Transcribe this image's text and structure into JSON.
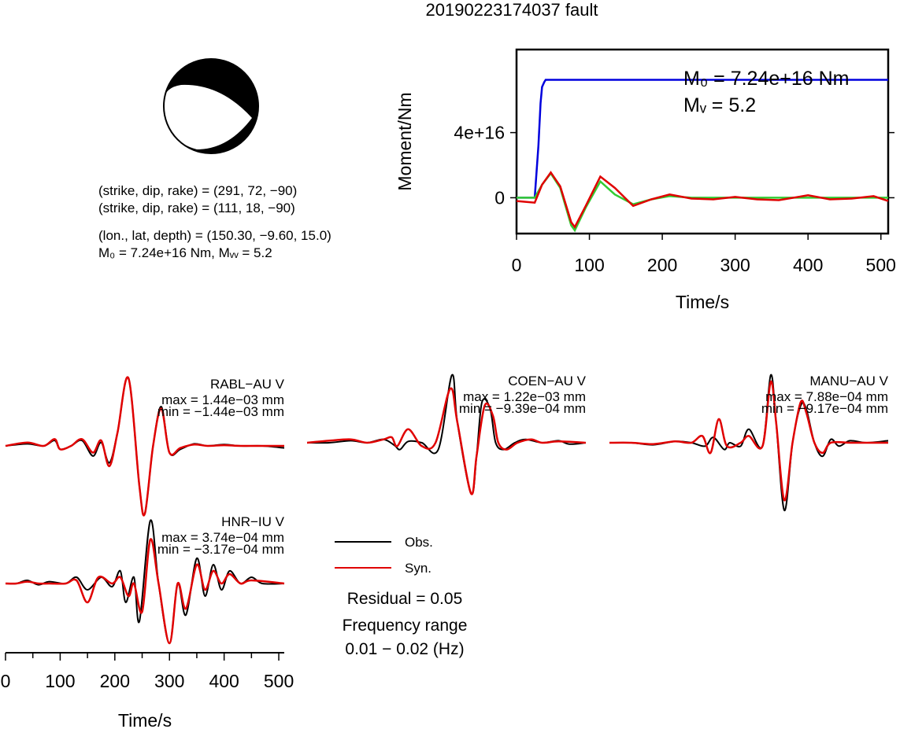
{
  "title": "20190223174037 fault",
  "mechanism": {
    "line1": "(strike, dip, rake) = (291, 72, −90)",
    "line2": "(strike, dip, rake) = (111, 18, −90)",
    "line3": "(lon., lat, depth) = (150.30, −9.60, 15.0)",
    "line4": "M₀ = 7.24e+16 Nm, Mᵥᵥ = 5.2"
  },
  "legend": {
    "obs": "Obs.",
    "syn": "Syn.",
    "residual": "Residual = 0.05",
    "freq_label": "Frequency range",
    "freq_value": "0.01 − 0.02 (Hz)"
  },
  "colors": {
    "obs": "#000000",
    "syn": "#e00000",
    "moment": "#0000dd",
    "stf": "#33cc33"
  },
  "chart_data": [
    {
      "type": "line",
      "name": "moment",
      "xlabel": "Time/s",
      "ylabel": "Moment/Nm",
      "xlim": [
        0,
        510
      ],
      "ylim": [
        -2.2e+16,
        9.1e+16
      ],
      "xticks": [
        "0",
        "100",
        "200",
        "300",
        "400",
        "500"
      ],
      "yticks": [
        "0",
        "4e+16"
      ],
      "annotation_m0": "M₀ = 7.24e+16 Nm",
      "annotation_mw": "Mᵥ = 5.2",
      "series": [
        {
          "color": "#0000dd",
          "x": [
            0,
            25,
            30,
            33,
            35,
            38,
            40,
            45,
            60,
            100,
            200,
            300,
            400,
            510
          ],
          "y": [
            0,
            0,
            3.2e+16,
            5.8e+16,
            6.8e+16,
            7.1e+16,
            7.24e+16,
            7.24e+16,
            7.24e+16,
            7.24e+16,
            7.24e+16,
            7.24e+16,
            7.24e+16,
            7.24e+16
          ]
        },
        {
          "color": "#33cc33",
          "x": [
            0,
            25,
            35,
            47,
            60,
            75,
            80,
            95,
            115,
            135,
            160,
            185,
            210,
            240,
            270,
            300,
            400,
            510
          ],
          "y": [
            0,
            0,
            8000000000000000.0,
            1.5e+16,
            6000000000000000.0,
            -1.7e+16,
            -2e+16,
            -6000000000000000.0,
            1e+16,
            2000000000000000.0,
            -4000000000000000.0,
            -1000000000000000.0,
            1000000000000000.0,
            0.0,
            0.0,
            0.0,
            0.0,
            0.0
          ]
        },
        {
          "color": "#e00000",
          "x": [
            0,
            25,
            35,
            47,
            60,
            75,
            80,
            95,
            115,
            135,
            160,
            185,
            210,
            240,
            270,
            300,
            330,
            360,
            400,
            430,
            460,
            490,
            510
          ],
          "y": [
            -2000000000000000.0,
            -3000000000000000.0,
            8000000000000000.0,
            1.55e+16,
            7000000000000000.0,
            -1.5e+16,
            -1.8e+16,
            -5000000000000000.0,
            1.3e+16,
            6000000000000000.0,
            -5000000000000000.0,
            -1000000000000000.0,
            2000000000000000.0,
            -500000000000000.0,
            -1000000000000000.0,
            500000000000000.0,
            -1000000000000000.0,
            -1500000000000000.0,
            1500000000000000.0,
            -1000000000000000.0,
            -500000000000000.0,
            1000000000000000.0,
            -2000000000000000.0
          ]
        }
      ]
    },
    {
      "type": "line",
      "name": "seismograms",
      "xlabel": "Time/s",
      "xlim": [
        0,
        510
      ],
      "xticks": [
        "0",
        "100",
        "200",
        "300",
        "400",
        "500"
      ],
      "stations": [
        {
          "label": "RABL−AU V",
          "max": "max = 1.44e−03 mm",
          "min": "min = −1.44e−03 mm",
          "obs": [
            [
              0,
              0
            ],
            [
              40,
              0.03
            ],
            [
              70,
              0.0
            ],
            [
              90,
              0.08
            ],
            [
              100,
              -0.05
            ],
            [
              120,
              0.0
            ],
            [
              140,
              0.08
            ],
            [
              160,
              -0.15
            ],
            [
              175,
              0.05
            ],
            [
              190,
              -0.25
            ],
            [
              205,
              0.2
            ],
            [
              225,
              1.0
            ],
            [
              245,
              -0.6
            ],
            [
              255,
              -1.0
            ],
            [
              270,
              0.0
            ],
            [
              285,
              0.58
            ],
            [
              300,
              -0.1
            ],
            [
              320,
              -0.05
            ],
            [
              345,
              0.03
            ],
            [
              370,
              0.0
            ],
            [
              400,
              0.02
            ],
            [
              430,
              0.0
            ],
            [
              470,
              0.0
            ],
            [
              510,
              -0.03
            ]
          ],
          "syn": [
            [
              0,
              0
            ],
            [
              40,
              0.05
            ],
            [
              70,
              0.0
            ],
            [
              90,
              0.1
            ],
            [
              100,
              -0.05
            ],
            [
              120,
              0.0
            ],
            [
              140,
              0.1
            ],
            [
              160,
              -0.1
            ],
            [
              175,
              0.08
            ],
            [
              190,
              -0.3
            ],
            [
              205,
              0.2
            ],
            [
              225,
              1.0
            ],
            [
              245,
              -0.6
            ],
            [
              255,
              -1.0
            ],
            [
              270,
              0.0
            ],
            [
              285,
              0.55
            ],
            [
              300,
              -0.1
            ],
            [
              320,
              -0.03
            ],
            [
              345,
              0.02
            ],
            [
              370,
              0.0
            ],
            [
              400,
              0.01
            ],
            [
              430,
              0.0
            ],
            [
              470,
              0.0
            ],
            [
              510,
              0.0
            ]
          ]
        },
        {
          "label": "COEN−AU V",
          "max": "max = 1.22e−03 mm",
          "min": "min = −9.39e−04 mm",
          "obs": [
            [
              0,
              0
            ],
            [
              40,
              0.0
            ],
            [
              80,
              0.03
            ],
            [
              110,
              0.0
            ],
            [
              140,
              0.05
            ],
            [
              160,
              -0.04
            ],
            [
              170,
              -0.1
            ],
            [
              185,
              0.02
            ],
            [
              210,
              0.0
            ],
            [
              240,
              -0.1
            ],
            [
              265,
              1.0
            ],
            [
              275,
              0.3
            ],
            [
              300,
              -0.75
            ],
            [
              310,
              -0.2
            ],
            [
              320,
              0.6
            ],
            [
              335,
              0.5
            ],
            [
              345,
              0.0
            ],
            [
              360,
              -0.1
            ],
            [
              380,
              0.0
            ],
            [
              400,
              0.05
            ],
            [
              430,
              0.0
            ],
            [
              460,
              0.03
            ],
            [
              480,
              -0.02
            ],
            [
              510,
              0.0
            ]
          ],
          "syn": [
            [
              0,
              0
            ],
            [
              40,
              0.03
            ],
            [
              80,
              0.05
            ],
            [
              110,
              0.0
            ],
            [
              140,
              0.05
            ],
            [
              155,
              0.08
            ],
            [
              165,
              -0.05
            ],
            [
              185,
              0.2
            ],
            [
              210,
              -0.05
            ],
            [
              235,
              0.0
            ],
            [
              262,
              0.8
            ],
            [
              275,
              0.3
            ],
            [
              300,
              -0.75
            ],
            [
              310,
              -0.2
            ],
            [
              325,
              0.55
            ],
            [
              340,
              0.4
            ],
            [
              350,
              0.0
            ],
            [
              365,
              -0.1
            ],
            [
              385,
              0.0
            ],
            [
              410,
              0.05
            ],
            [
              430,
              0.0
            ],
            [
              460,
              0.02
            ],
            [
              510,
              0.0
            ]
          ]
        },
        {
          "label": "MANU−AU V",
          "max": "max = 7.88e−04 mm",
          "min": "min = −9.17e−04 mm",
          "obs": [
            [
              0,
              0
            ],
            [
              40,
              0.0
            ],
            [
              80,
              -0.03
            ],
            [
              120,
              0.02
            ],
            [
              150,
              0.0
            ],
            [
              175,
              -0.05
            ],
            [
              190,
              0.08
            ],
            [
              210,
              -0.1
            ],
            [
              220,
              0.0
            ],
            [
              240,
              -0.05
            ],
            [
              255,
              0.2
            ],
            [
              280,
              -0.05
            ],
            [
              295,
              1.0
            ],
            [
              305,
              0.3
            ],
            [
              320,
              -1.0
            ],
            [
              335,
              0.0
            ],
            [
              350,
              0.55
            ],
            [
              360,
              0.5
            ],
            [
              375,
              0.0
            ],
            [
              390,
              -0.2
            ],
            [
              405,
              0.05
            ],
            [
              420,
              -0.05
            ],
            [
              440,
              0.03
            ],
            [
              470,
              0.0
            ],
            [
              510,
              0.03
            ]
          ],
          "syn": [
            [
              0,
              0
            ],
            [
              40,
              0.0
            ],
            [
              80,
              -0.02
            ],
            [
              120,
              0.02
            ],
            [
              150,
              0.0
            ],
            [
              170,
              0.1
            ],
            [
              185,
              -0.15
            ],
            [
              200,
              0.35
            ],
            [
              215,
              -0.05
            ],
            [
              240,
              0.0
            ],
            [
              255,
              0.1
            ],
            [
              280,
              -0.05
            ],
            [
              295,
              0.9
            ],
            [
              305,
              0.3
            ],
            [
              320,
              -0.85
            ],
            [
              335,
              0.0
            ],
            [
              350,
              0.6
            ],
            [
              360,
              0.45
            ],
            [
              375,
              0.0
            ],
            [
              390,
              -0.15
            ],
            [
              405,
              0.0
            ],
            [
              440,
              0.0
            ],
            [
              470,
              0.0
            ],
            [
              510,
              0.0
            ]
          ]
        },
        {
          "label": "HNR−IU V",
          "max": "max = 3.74e−04 mm",
          "min": "min = −3.17e−04 mm",
          "obs": [
            [
              0,
              0
            ],
            [
              20,
              0.0
            ],
            [
              40,
              0.05
            ],
            [
              60,
              -0.02
            ],
            [
              80,
              0.03
            ],
            [
              110,
              0.0
            ],
            [
              130,
              0.1
            ],
            [
              150,
              -0.1
            ],
            [
              175,
              0.1
            ],
            [
              195,
              -0.05
            ],
            [
              210,
              0.2
            ],
            [
              220,
              -0.3
            ],
            [
              235,
              0.1
            ],
            [
              245,
              -0.6
            ],
            [
              265,
              1.0
            ],
            [
              280,
              0.0
            ],
            [
              300,
              -0.95
            ],
            [
              315,
              0.0
            ],
            [
              330,
              -0.5
            ],
            [
              350,
              0.4
            ],
            [
              365,
              -0.2
            ],
            [
              380,
              0.3
            ],
            [
              395,
              -0.1
            ],
            [
              410,
              0.2
            ],
            [
              430,
              0.0
            ],
            [
              450,
              0.1
            ],
            [
              470,
              0.0
            ],
            [
              510,
              0.0
            ]
          ],
          "syn": [
            [
              0,
              0
            ],
            [
              20,
              0.0
            ],
            [
              40,
              0.03
            ],
            [
              60,
              0.0
            ],
            [
              80,
              0.0
            ],
            [
              110,
              0.0
            ],
            [
              130,
              0.05
            ],
            [
              150,
              -0.3
            ],
            [
              170,
              0.1
            ],
            [
              195,
              0.0
            ],
            [
              210,
              0.1
            ],
            [
              225,
              -0.2
            ],
            [
              235,
              0.0
            ],
            [
              250,
              -0.45
            ],
            [
              265,
              0.7
            ],
            [
              280,
              0.0
            ],
            [
              300,
              -0.95
            ],
            [
              315,
              0.0
            ],
            [
              330,
              -0.4
            ],
            [
              350,
              0.3
            ],
            [
              365,
              -0.1
            ],
            [
              380,
              0.2
            ],
            [
              395,
              0.0
            ],
            [
              410,
              0.15
            ],
            [
              430,
              0.0
            ],
            [
              450,
              0.05
            ],
            [
              510,
              0.0
            ]
          ]
        }
      ]
    }
  ]
}
